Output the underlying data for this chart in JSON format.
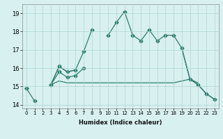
{
  "xlabel": "Humidex (Indice chaleur)",
  "x": [
    0,
    1,
    2,
    3,
    4,
    5,
    6,
    7,
    8,
    9,
    10,
    11,
    12,
    13,
    14,
    15,
    16,
    17,
    18,
    19,
    20,
    21,
    22,
    23
  ],
  "line_main": [
    14.9,
    14.2,
    null,
    15.1,
    16.1,
    15.8,
    15.9,
    16.9,
    18.1,
    null,
    17.8,
    18.5,
    19.1,
    17.8,
    17.5,
    18.1,
    17.5,
    17.8,
    17.8,
    17.1,
    15.4,
    15.1,
    14.6,
    14.3
  ],
  "line_top": [
    14.9,
    null,
    null,
    15.1,
    15.8,
    15.5,
    15.6,
    16.0,
    null,
    null,
    null,
    null,
    null,
    null,
    null,
    null,
    null,
    null,
    null,
    null,
    null,
    null,
    null,
    null
  ],
  "line_mid": [
    14.9,
    null,
    null,
    15.1,
    15.3,
    15.2,
    15.2,
    15.2,
    15.2,
    15.2,
    15.2,
    15.2,
    15.2,
    15.2,
    15.2,
    15.2,
    15.2,
    15.2,
    15.2,
    15.3,
    15.4,
    15.2,
    null,
    null
  ],
  "line_diag": [
    14.9,
    null,
    null,
    15.1,
    16.1,
    15.8,
    15.9,
    null,
    null,
    null,
    null,
    null,
    null,
    null,
    null,
    null,
    null,
    null,
    null,
    17.1,
    15.4,
    15.1,
    14.6,
    14.3
  ],
  "color": "#2e7d6e",
  "bg_color": "#d8f0f0",
  "grid_color": "#aed4d4",
  "ylim": [
    13.8,
    19.5
  ],
  "yticks": [
    14,
    15,
    16,
    17,
    18,
    19
  ],
  "xticks": [
    0,
    1,
    2,
    3,
    4,
    5,
    6,
    7,
    8,
    9,
    10,
    11,
    12,
    13,
    14,
    15,
    16,
    17,
    18,
    19,
    20,
    21,
    22,
    23
  ]
}
